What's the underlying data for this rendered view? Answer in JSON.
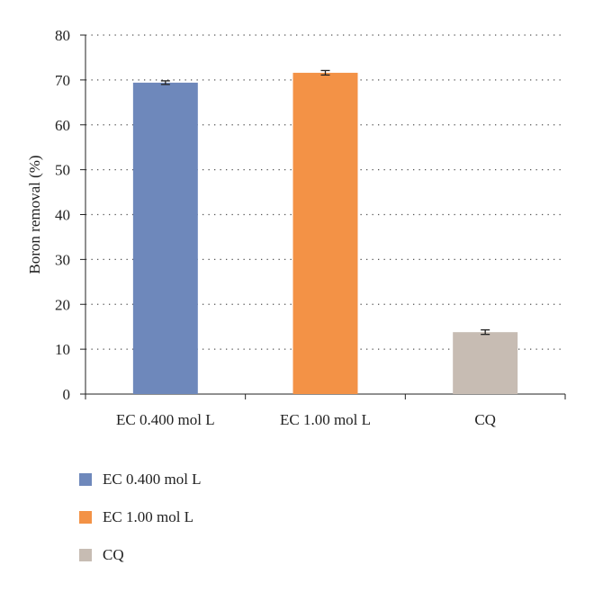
{
  "chart_data": {
    "type": "bar",
    "categories": [
      "EC 0.400 mol L",
      "EC 1.00 mol L",
      "CQ"
    ],
    "values": [
      69.4,
      71.6,
      13.8
    ],
    "errors": [
      0.4,
      0.5,
      0.5
    ],
    "colors": [
      "#6e88bb",
      "#f39246",
      "#c7bcb3"
    ],
    "title": "",
    "xlabel": "",
    "ylabel": "Boron removal (%)",
    "ylim": [
      0,
      80
    ],
    "yticks": [
      0,
      10,
      20,
      30,
      40,
      50,
      60,
      70,
      80
    ],
    "grid": true,
    "legend_position": "bottom-left"
  },
  "legend": {
    "items": [
      {
        "label": "EC 0.400 mol L",
        "color": "#6e88bb"
      },
      {
        "label": "EC 1.00 mol L",
        "color": "#f39246"
      },
      {
        "label": "CQ",
        "color": "#c7bcb3"
      }
    ]
  }
}
